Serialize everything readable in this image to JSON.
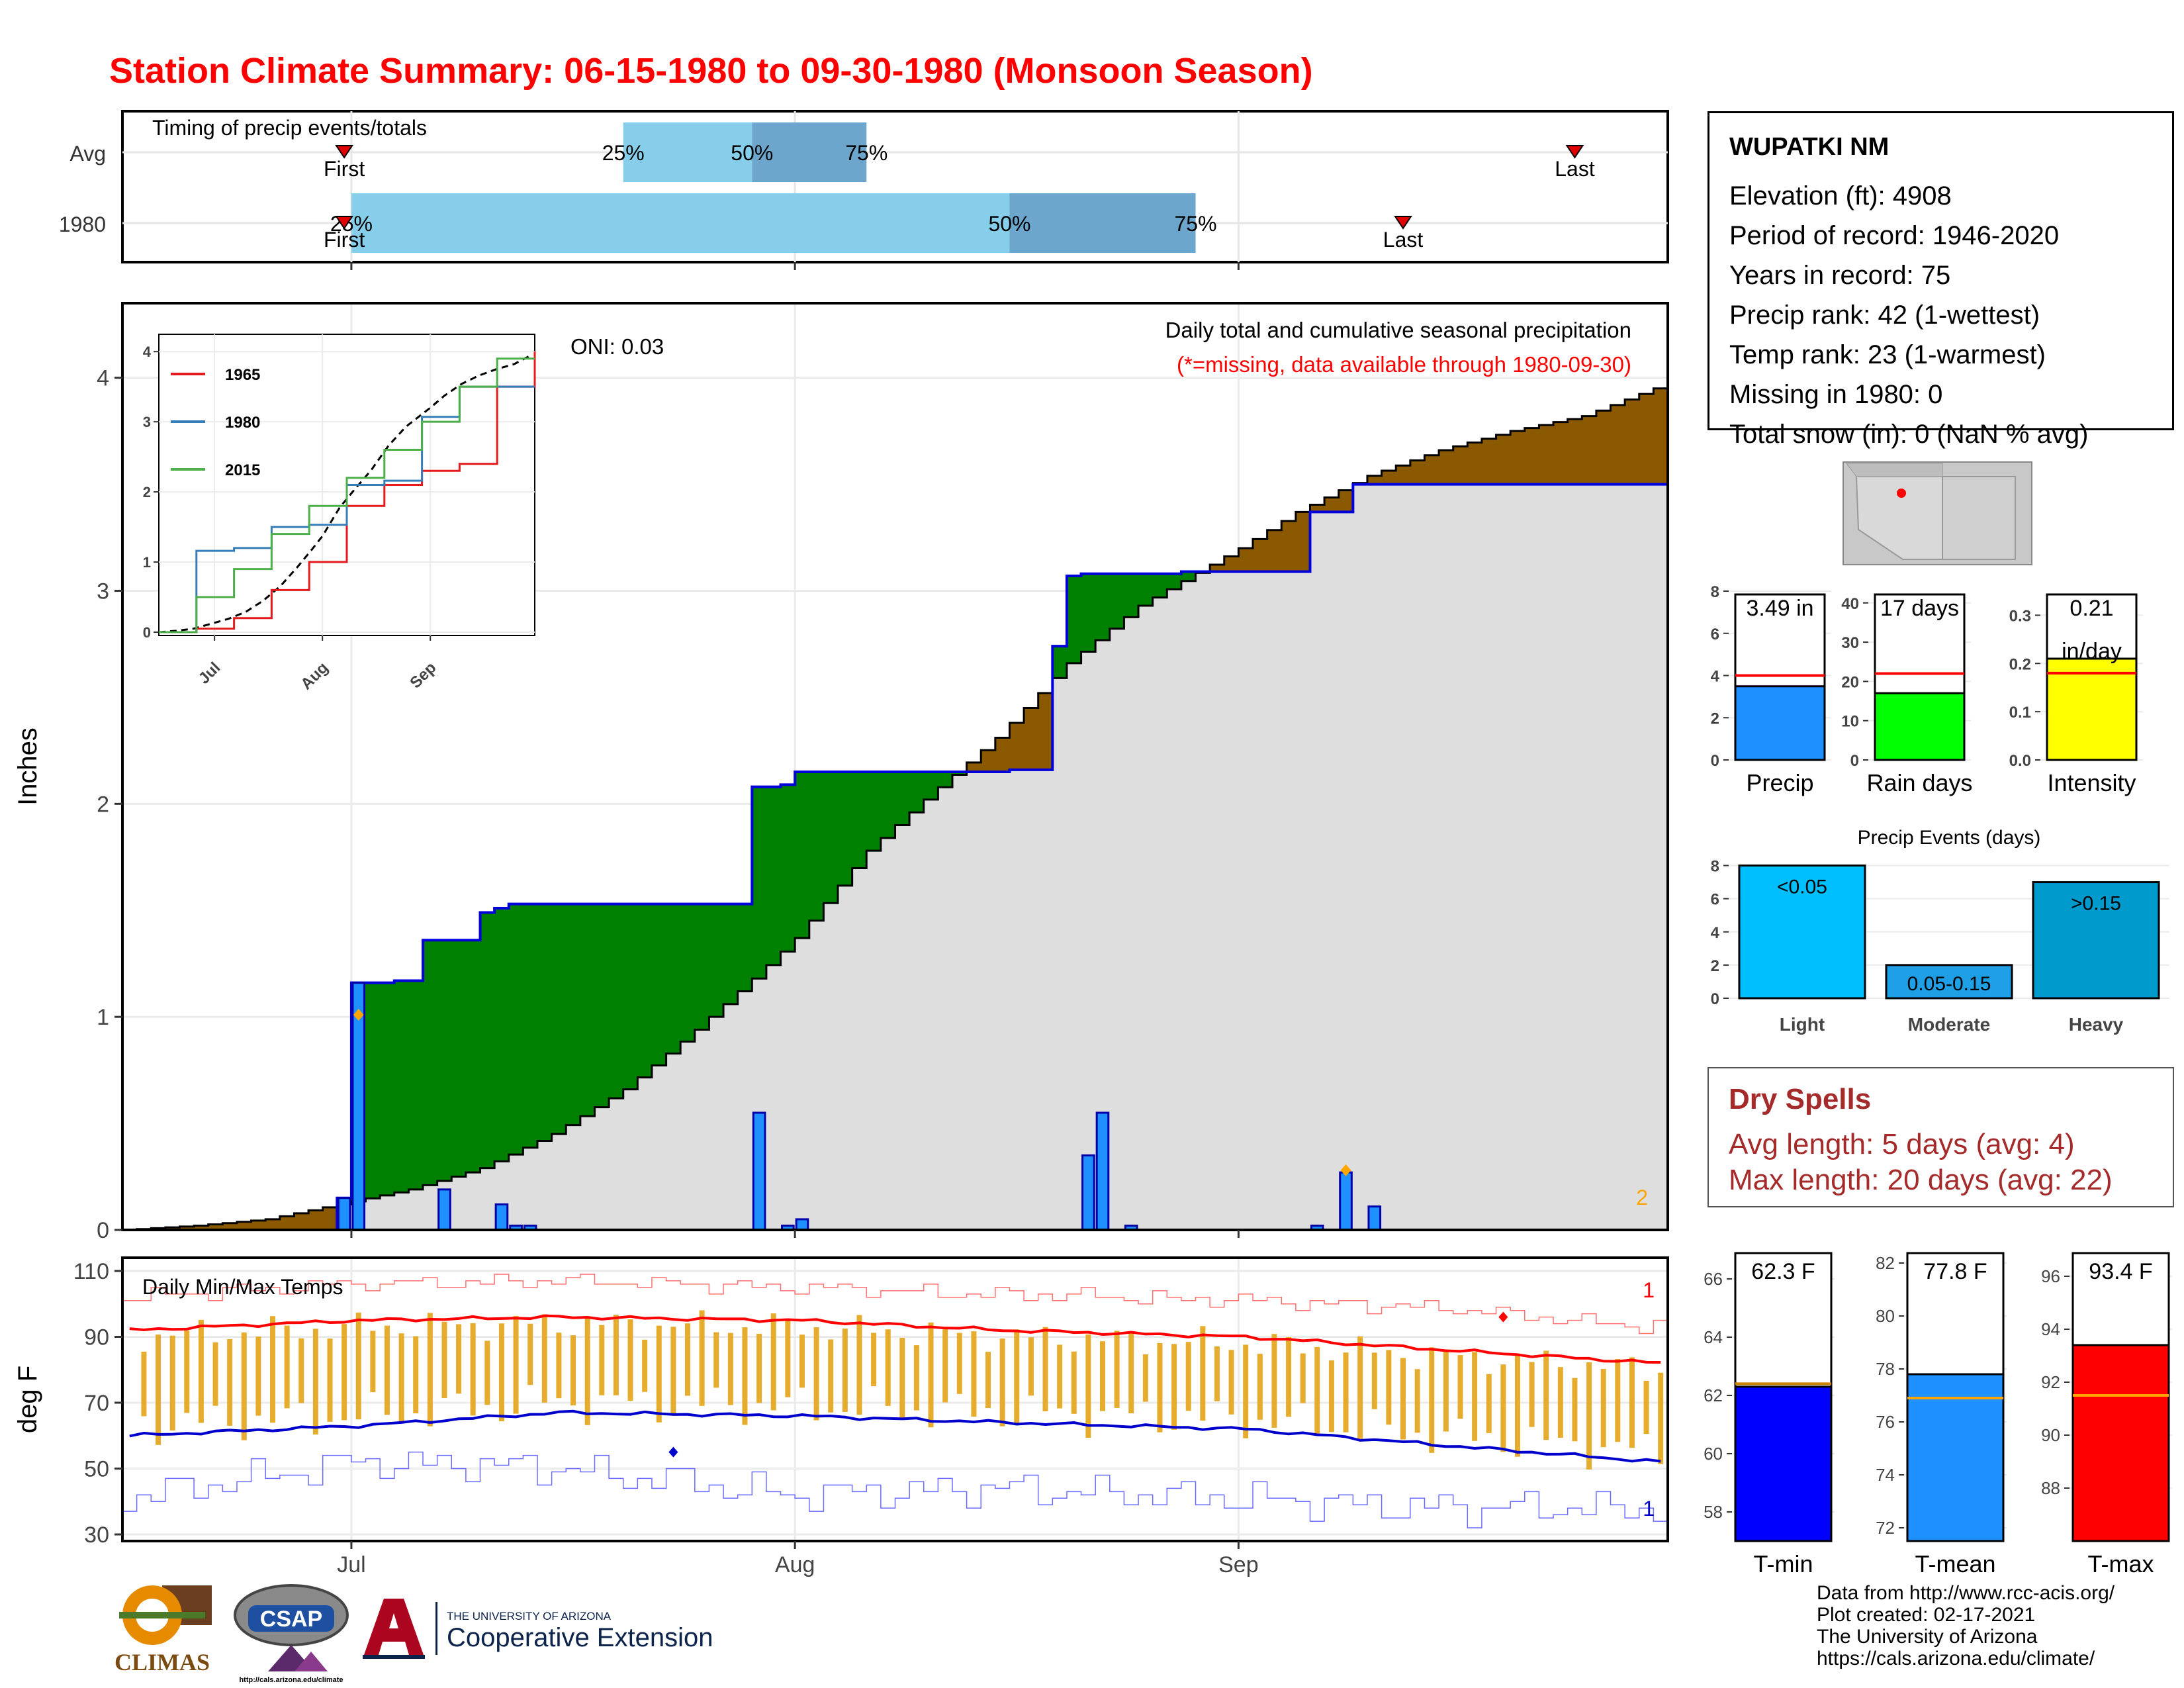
{
  "title": "Station Climate Summary: 06-15-1980 to 09-30-1980 (Monsoon Season)",
  "timing_panel": {
    "title": "Timing of precip events/totals",
    "rows": [
      {
        "label": "Avg",
        "first": "06-30",
        "p25": "07-20",
        "p50": "07-29",
        "p75": "08-06",
        "last": "09-24"
      },
      {
        "label": "1980",
        "first": "06-30",
        "p25": "07-01",
        "p50": "08-16",
        "p75": "08-29",
        "last": "09-12"
      }
    ],
    "first_label": "First",
    "last_label": "Last",
    "pct_labels": [
      "25%",
      "50%",
      "75%"
    ]
  },
  "main_panel": {
    "ylabel": "Inches",
    "oni": "ONI: 0.03",
    "caption": "Daily total and cumulative seasonal precipitation",
    "missing_note": "(*=missing, data available through 1980-09-30)",
    "missing_count": "2"
  },
  "temp_panel": {
    "title": "Daily Min/Max Temps",
    "ylabel": "deg F",
    "max_record_count": "1",
    "min_record_count": "1"
  },
  "x_ticks": [
    "Jul",
    "Aug",
    "Sep"
  ],
  "inset": {
    "legend": [
      "1965",
      "1980",
      "2015"
    ],
    "y_ticks": [
      "0",
      "1",
      "2",
      "3",
      "4"
    ],
    "x_ticks": [
      "Jul",
      "Aug",
      "Sep"
    ]
  },
  "station": {
    "name": "WUPATKI NM",
    "lines": [
      "Elevation (ft): 4908",
      "Period of record: 1946-2020",
      "Years in record: 75",
      "Precip rank: 42 (1-wettest)",
      "Temp rank: 23 (1-warmest)",
      "Missing in 1980: 0",
      "Total snow (in): 0 (NaN % avg)"
    ]
  },
  "mini_charts": {
    "precip": {
      "label": "Precip",
      "value_text": "3.49 in"
    },
    "rain_days": {
      "label": "Rain days",
      "value_text": "17 days"
    },
    "intensity": {
      "label": "Intensity",
      "value_text": "0.21",
      "unit_text": "in/day"
    }
  },
  "events": {
    "title": "Precip Events (days)",
    "labels": [
      "Light",
      "Moderate",
      "Heavy"
    ],
    "bar_text": [
      "<0.05",
      "0.05-0.15",
      ">0.15"
    ]
  },
  "dry_spells": {
    "title": "Dry Spells",
    "avg": "Avg length: 5 days (avg: 4)",
    "max": "Max length: 20 days (avg: 22)"
  },
  "temp_summary": {
    "tmin": {
      "label": "T-min",
      "value_text": "62.3 F"
    },
    "tmean": {
      "label": "T-mean",
      "value_text": "77.8 F"
    },
    "tmax": {
      "label": "T-max",
      "value_text": "93.4 F"
    }
  },
  "credits": [
    "Data from http://www.rcc-acis.org/",
    "Plot created: 02-17-2021",
    "The University of Arizona",
    "https://cals.arizona.edu/climate/"
  ],
  "logos": {
    "climas": "CLIMAS",
    "csap": "CSAP",
    "csap_url": "http://cals.arizona.edu/climate",
    "ua_line1": "THE UNIVERSITY OF ARIZONA",
    "ua_line2": "Cooperative Extension"
  },
  "colors": {
    "title": "#ff0000",
    "avg_cum": "#8b5a00",
    "above_avg": "#008000",
    "bars": "#1e90ff",
    "tmax_line": "#ff0000",
    "tmin_line": "#0000cd",
    "temp_bars": "#e6ac2e",
    "dry": "#a52a2a"
  },
  "chart_data": [
    {
      "type": "area",
      "title": "Daily total and cumulative seasonal precipitation",
      "ylabel": "Inches",
      "ylim": [
        0,
        4.35
      ],
      "x_ticks": [
        "Jul",
        "Aug",
        "Sep"
      ],
      "series": [
        {
          "name": "1980 cumulative",
          "points": [
            [
              "06-15",
              0
            ],
            [
              "06-30",
              0.15
            ],
            [
              "07-01",
              1.16
            ],
            [
              "07-04",
              1.17
            ],
            [
              "07-06",
              1.36
            ],
            [
              "07-10",
              1.49
            ],
            [
              "07-11",
              1.51
            ],
            [
              "07-12",
              1.53
            ],
            [
              "07-29",
              2.08
            ],
            [
              "07-31",
              2.09
            ],
            [
              "08-01",
              2.15
            ],
            [
              "08-16",
              2.16
            ],
            [
              "08-19",
              2.74
            ],
            [
              "08-20",
              3.07
            ],
            [
              "08-21",
              3.08
            ],
            [
              "08-24",
              3.08
            ],
            [
              "08-28",
              3.09
            ],
            [
              "09-06",
              3.37
            ],
            [
              "09-09",
              3.5
            ],
            [
              "09-30",
              3.5
            ]
          ]
        },
        {
          "name": "Average cumulative",
          "points": [
            [
              "06-15",
              0
            ],
            [
              "06-20",
              0.02
            ],
            [
              "06-25",
              0.05
            ],
            [
              "06-30",
              0.12
            ],
            [
              "07-05",
              0.19
            ],
            [
              "07-10",
              0.29
            ],
            [
              "07-15",
              0.45
            ],
            [
              "07-20",
              0.66
            ],
            [
              "07-25",
              0.94
            ],
            [
              "07-29",
              1.18
            ],
            [
              "08-01",
              1.37
            ],
            [
              "08-06",
              1.78
            ],
            [
              "08-10",
              2.02
            ],
            [
              "08-15",
              2.31
            ],
            [
              "08-18",
              2.52
            ],
            [
              "08-20",
              2.66
            ],
            [
              "08-25",
              2.93
            ],
            [
              "09-01",
              3.2
            ],
            [
              "09-05",
              3.37
            ],
            [
              "09-10",
              3.54
            ],
            [
              "09-15",
              3.66
            ],
            [
              "09-20",
              3.75
            ],
            [
              "09-25",
              3.82
            ],
            [
              "09-30",
              3.95
            ]
          ]
        },
        {
          "name": "Daily precip",
          "points": [
            [
              "06-30",
              0.15
            ],
            [
              "07-01",
              1.16
            ],
            [
              "07-07",
              0.19
            ],
            [
              "07-11",
              0.12
            ],
            [
              "07-12",
              0.02
            ],
            [
              "07-13",
              0.02
            ],
            [
              "07-29",
              0.55
            ],
            [
              "07-31",
              0.02
            ],
            [
              "08-01",
              0.05
            ],
            [
              "08-21",
              0.35
            ],
            [
              "08-22",
              0.55
            ],
            [
              "08-24",
              0.02
            ],
            [
              "09-06",
              0.02
            ],
            [
              "09-08",
              0.27
            ],
            [
              "09-10",
              0.11
            ]
          ]
        }
      ]
    },
    {
      "type": "line",
      "title": "Daily Min/Max Temps",
      "ylabel": "deg F",
      "ylim": [
        30,
        110
      ],
      "x_ticks": [
        "Jul",
        "Aug",
        "Sep"
      ],
      "series": [
        {
          "name": "Avg max",
          "points": [
            [
              "06-15",
              92
            ],
            [
              "07-01",
              95
            ],
            [
              "07-15",
              96
            ],
            [
              "08-01",
              95
            ],
            [
              "08-15",
              92
            ],
            [
              "09-01",
              90
            ],
            [
              "09-15",
              86
            ],
            [
              "09-30",
              82
            ]
          ]
        },
        {
          "name": "Avg min",
          "points": [
            [
              "06-15",
              60
            ],
            [
              "07-01",
              63
            ],
            [
              "07-15",
              67
            ],
            [
              "08-01",
              66
            ],
            [
              "08-15",
              64
            ],
            [
              "09-01",
              62
            ],
            [
              "09-15",
              57
            ],
            [
              "09-30",
              52
            ]
          ]
        },
        {
          "name": "Record max",
          "points": [
            [
              "06-15",
              102
            ],
            [
              "07-01",
              106
            ],
            [
              "07-15",
              107
            ],
            [
              "08-01",
              105
            ],
            [
              "08-15",
              103
            ],
            [
              "09-01",
              101
            ],
            [
              "09-15",
              99
            ],
            [
              "09-30",
              93
            ]
          ]
        },
        {
          "name": "Record min",
          "points": [
            [
              "06-15",
              41
            ],
            [
              "07-01",
              52
            ],
            [
              "07-15",
              50
            ],
            [
              "08-01",
              42
            ],
            [
              "08-15",
              44
            ],
            [
              "09-01",
              41
            ],
            [
              "09-15",
              38
            ],
            [
              "09-30",
              38
            ]
          ]
        }
      ]
    },
    {
      "type": "bar",
      "title": "Timing of precip events/totals",
      "categories": [
        "Avg",
        "1980"
      ],
      "series": [
        {
          "name": "25%-50%",
          "values": [
            [
              "07-20",
              "07-29"
            ],
            [
              "07-01",
              "08-16"
            ]
          ]
        },
        {
          "name": "50%-75%",
          "values": [
            [
              "07-29",
              "08-06"
            ],
            [
              "08-16",
              "08-29"
            ]
          ]
        }
      ]
    },
    {
      "type": "line",
      "title": "",
      "ylim": [
        0,
        4.2
      ],
      "legend": "top-left",
      "series": [
        {
          "name": "1965",
          "values": [
            0,
            0.05,
            0.2,
            0.6,
            1.0,
            1.8,
            2.1,
            2.3,
            2.4,
            3.5,
            4.0
          ]
        },
        {
          "name": "1980",
          "values": [
            0,
            1.16,
            1.2,
            1.5,
            1.53,
            2.1,
            2.16,
            3.07,
            3.5,
            3.5,
            3.5
          ]
        },
        {
          "name": "2015",
          "values": [
            0,
            0.5,
            0.9,
            1.4,
            1.8,
            2.2,
            2.6,
            3.0,
            3.5,
            3.9,
            3.9
          ]
        }
      ]
    },
    {
      "type": "bar",
      "title": "",
      "categories": [
        "Precip",
        "Rain days",
        "Intensity"
      ],
      "values": [
        3.49,
        17,
        0.21
      ],
      "averages": [
        4.0,
        22,
        0.18
      ],
      "ylims": [
        [
          0,
          8
        ],
        [
          0,
          43
        ],
        [
          0,
          0.35
        ]
      ]
    },
    {
      "type": "bar",
      "title": "Precip Events (days)",
      "categories": [
        "Light",
        "Moderate",
        "Heavy"
      ],
      "values": [
        8,
        2,
        7
      ],
      "ylim": [
        0,
        8.3
      ]
    },
    {
      "type": "bar",
      "title": "",
      "categories": [
        "T-min",
        "T-mean",
        "T-max"
      ],
      "values": [
        62.3,
        77.8,
        93.4
      ],
      "averages": [
        62.4,
        76.9,
        91.5
      ],
      "ylims": [
        [
          57,
          67
        ],
        [
          71.5,
          82.5
        ],
        [
          86,
          97
        ]
      ]
    }
  ]
}
